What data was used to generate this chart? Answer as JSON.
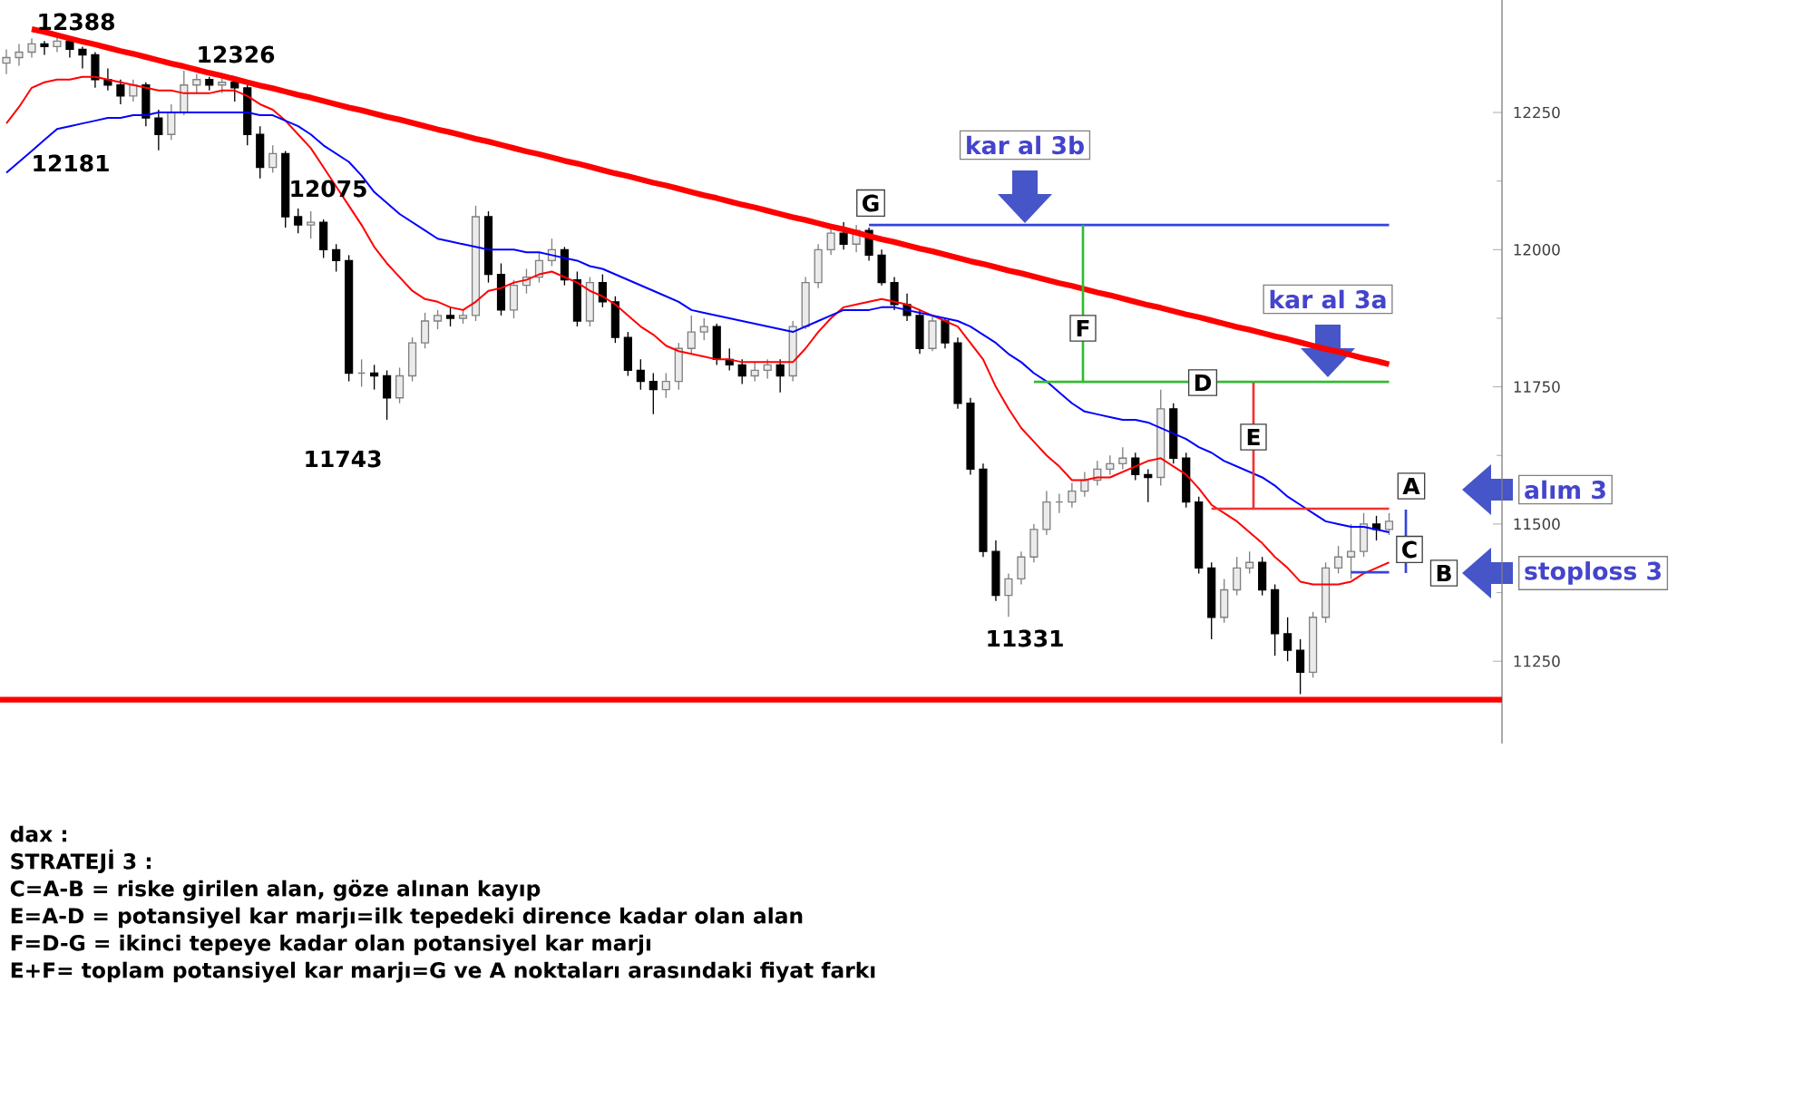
{
  "chart_data": {
    "type": "candlestick",
    "categories": [
      null,
      null,
      null,
      null,
      null,
      null,
      null,
      null,
      null,
      null,
      null,
      null,
      null,
      null,
      null,
      null,
      null,
      null,
      null,
      null,
      null,
      null,
      null,
      null,
      null,
      null,
      null,
      null,
      null,
      null,
      null,
      null,
      null,
      null,
      null,
      null,
      null,
      null,
      null,
      null,
      null,
      null,
      null,
      null,
      null,
      null,
      null,
      null,
      null,
      null,
      null,
      null,
      null,
      null,
      null,
      null,
      null,
      null,
      null,
      null,
      null,
      null,
      null,
      null,
      null,
      null,
      null,
      null,
      null,
      null,
      null,
      null,
      null,
      null,
      null,
      null,
      null,
      null,
      null,
      null,
      null,
      null,
      null,
      null,
      null,
      null,
      null,
      null,
      null,
      null,
      null,
      null,
      null,
      null,
      null,
      null,
      null,
      null,
      null,
      null,
      null,
      null,
      null,
      null,
      null,
      null,
      null,
      null,
      null,
      null
    ],
    "ohlc": [
      [
        12340,
        12365,
        12320,
        12350
      ],
      [
        12350,
        12375,
        12335,
        12360
      ],
      [
        12360,
        12385,
        12350,
        12375
      ],
      [
        12375,
        12380,
        12355,
        12370
      ],
      [
        12370,
        12388,
        12360,
        12380
      ],
      [
        12380,
        12385,
        12350,
        12365
      ],
      [
        12365,
        12370,
        12330,
        12355
      ],
      [
        12355,
        12360,
        12295,
        12310
      ],
      [
        12310,
        12330,
        12290,
        12300
      ],
      [
        12300,
        12310,
        12265,
        12280
      ],
      [
        12280,
        12310,
        12270,
        12300
      ],
      [
        12300,
        12305,
        12225,
        12240
      ],
      [
        12240,
        12255,
        12181,
        12210
      ],
      [
        12210,
        12265,
        12200,
        12250
      ],
      [
        12250,
        12326,
        12245,
        12300
      ],
      [
        12300,
        12320,
        12285,
        12310
      ],
      [
        12310,
        12315,
        12290,
        12300
      ],
      [
        12300,
        12315,
        12285,
        12305
      ],
      [
        12305,
        12315,
        12270,
        12295
      ],
      [
        12295,
        12300,
        12190,
        12210
      ],
      [
        12210,
        12225,
        12130,
        12150
      ],
      [
        12150,
        12190,
        12140,
        12175
      ],
      [
        12175,
        12180,
        12040,
        12060
      ],
      [
        12060,
        12075,
        12030,
        12045
      ],
      [
        12045,
        12070,
        12020,
        12050
      ],
      [
        12050,
        12055,
        11985,
        12000
      ],
      [
        12000,
        12010,
        11960,
        11980
      ],
      [
        11980,
        11990,
        11760,
        11775
      ],
      [
        11775,
        11800,
        11750,
        11775
      ],
      [
        11775,
        11790,
        11745,
        11770
      ],
      [
        11770,
        11780,
        11690,
        11730
      ],
      [
        11730,
        11785,
        11720,
        11770
      ],
      [
        11770,
        11840,
        11760,
        11830
      ],
      [
        11830,
        11885,
        11820,
        11870
      ],
      [
        11870,
        11890,
        11855,
        11880
      ],
      [
        11880,
        11895,
        11860,
        11875
      ],
      [
        11875,
        11890,
        11865,
        11880
      ],
      [
        11880,
        12080,
        11870,
        12060
      ],
      [
        12060,
        12070,
        11940,
        11955
      ],
      [
        11955,
        11975,
        11880,
        11890
      ],
      [
        11890,
        11945,
        11875,
        11935
      ],
      [
        11935,
        11965,
        11920,
        11950
      ],
      [
        11950,
        11995,
        11940,
        11980
      ],
      [
        11980,
        12020,
        11970,
        12000
      ],
      [
        12000,
        12005,
        11935,
        11945
      ],
      [
        11945,
        11960,
        11860,
        11870
      ],
      [
        11870,
        11950,
        11860,
        11940
      ],
      [
        11940,
        11955,
        11895,
        11905
      ],
      [
        11905,
        11915,
        11830,
        11840
      ],
      [
        11840,
        11850,
        11770,
        11780
      ],
      [
        11780,
        11800,
        11745,
        11760
      ],
      [
        11760,
        11775,
        11700,
        11745
      ],
      [
        11745,
        11775,
        11730,
        11760
      ],
      [
        11760,
        11830,
        11745,
        11820
      ],
      [
        11820,
        11880,
        11810,
        11850
      ],
      [
        11850,
        11875,
        11835,
        11860
      ],
      [
        11860,
        11865,
        11790,
        11800
      ],
      [
        11800,
        11820,
        11780,
        11790
      ],
      [
        11790,
        11800,
        11755,
        11770
      ],
      [
        11770,
        11795,
        11760,
        11780
      ],
      [
        11780,
        11800,
        11765,
        11790
      ],
      [
        11790,
        11800,
        11740,
        11770
      ],
      [
        11770,
        11870,
        11760,
        11860
      ],
      [
        11860,
        11950,
        11855,
        11940
      ],
      [
        11940,
        12010,
        11930,
        12000
      ],
      [
        12000,
        12040,
        11990,
        12030
      ],
      [
        12030,
        12050,
        12000,
        12010
      ],
      [
        12010,
        12045,
        11995,
        12035
      ],
      [
        12035,
        12040,
        11980,
        11990
      ],
      [
        11990,
        12000,
        11935,
        11940
      ],
      [
        11940,
        11950,
        11890,
        11900
      ],
      [
        11900,
        11920,
        11870,
        11880
      ],
      [
        11880,
        11890,
        11810,
        11820
      ],
      [
        11820,
        11880,
        11815,
        11870
      ],
      [
        11870,
        11875,
        11820,
        11830
      ],
      [
        11830,
        11840,
        11710,
        11720
      ],
      [
        11720,
        11730,
        11590,
        11600
      ],
      [
        11600,
        11610,
        11440,
        11450
      ],
      [
        11450,
        11470,
        11360,
        11370
      ],
      [
        11370,
        11410,
        11331,
        11400
      ],
      [
        11400,
        11450,
        11390,
        11440
      ],
      [
        11440,
        11500,
        11430,
        11490
      ],
      [
        11490,
        11560,
        11480,
        11540
      ],
      [
        11540,
        11555,
        11520,
        11540
      ],
      [
        11540,
        11575,
        11530,
        11560
      ],
      [
        11560,
        11595,
        11550,
        11580
      ],
      [
        11580,
        11615,
        11570,
        11600
      ],
      [
        11600,
        11625,
        11590,
        11610
      ],
      [
        11610,
        11640,
        11600,
        11620
      ],
      [
        11620,
        11630,
        11580,
        11590
      ],
      [
        11590,
        11600,
        11540,
        11585
      ],
      [
        11585,
        11745,
        11570,
        11710
      ],
      [
        11710,
        11720,
        11610,
        11620
      ],
      [
        11620,
        11630,
        11530,
        11540
      ],
      [
        11540,
        11550,
        11410,
        11420
      ],
      [
        11420,
        11430,
        11290,
        11330
      ],
      [
        11330,
        11400,
        11320,
        11380
      ],
      [
        11380,
        11440,
        11370,
        11420
      ],
      [
        11420,
        11450,
        11410,
        11430
      ],
      [
        11430,
        11440,
        11370,
        11380
      ],
      [
        11380,
        11390,
        11260,
        11300
      ],
      [
        11300,
        11330,
        11250,
        11270
      ],
      [
        11270,
        11290,
        11190,
        11230
      ],
      [
        11230,
        11340,
        11220,
        11330
      ],
      [
        11330,
        11430,
        11320,
        11420
      ],
      [
        11420,
        11460,
        11410,
        11440
      ],
      [
        11440,
        11500,
        11400,
        11450
      ],
      [
        11450,
        11520,
        11440,
        11500
      ],
      [
        11500,
        11515,
        11470,
        11490
      ],
      [
        11490,
        11520,
        11480,
        11505
      ]
    ],
    "series": [
      {
        "type": "line",
        "color": "#ff0000",
        "values": [
          12230,
          12260,
          12295,
          12305,
          12310,
          12310,
          12315,
          12315,
          12310,
          12305,
          12300,
          12295,
          12290,
          12290,
          12285,
          12285,
          12285,
          12290,
          12290,
          12280,
          12265,
          12255,
          12235,
          12210,
          12185,
          12150,
          12115,
          12080,
          12045,
          12005,
          11975,
          11950,
          11925,
          11910,
          11905,
          11895,
          11890,
          11905,
          11925,
          11930,
          11940,
          11945,
          11955,
          11960,
          11950,
          11940,
          11925,
          11915,
          11900,
          11880,
          11860,
          11845,
          11825,
          11815,
          11810,
          11805,
          11800,
          11800,
          11795,
          11795,
          11795,
          11795,
          11795,
          11820,
          11850,
          11875,
          11895,
          11900,
          11905,
          11910,
          11905,
          11900,
          11890,
          11880,
          11870,
          11860,
          11830,
          11800,
          11750,
          11710,
          11675,
          11650,
          11625,
          11605,
          11580,
          11580,
          11585,
          11585,
          11595,
          11605,
          11615,
          11620,
          11605,
          11590,
          11565,
          11535,
          11520,
          11505,
          11485,
          11465,
          11440,
          11420,
          11395,
          11390,
          11390,
          11390,
          11395,
          11410,
          11420,
          11430
        ]
      },
      {
        "type": "line",
        "color": "#0000ff",
        "values": [
          12140,
          12160,
          12180,
          12200,
          12220,
          12225,
          12230,
          12235,
          12240,
          12240,
          12245,
          12245,
          12250,
          12250,
          12250,
          12250,
          12250,
          12250,
          12250,
          12250,
          12245,
          12245,
          12235,
          12225,
          12210,
          12190,
          12175,
          12160,
          12135,
          12105,
          12085,
          12065,
          12050,
          12035,
          12020,
          12015,
          12010,
          12005,
          12000,
          12000,
          12000,
          11995,
          11995,
          11990,
          11985,
          11980,
          11970,
          11965,
          11955,
          11945,
          11935,
          11925,
          11915,
          11905,
          11890,
          11885,
          11880,
          11875,
          11870,
          11865,
          11860,
          11855,
          11850,
          11860,
          11870,
          11880,
          11890,
          11890,
          11890,
          11895,
          11895,
          11890,
          11885,
          11880,
          11875,
          11870,
          11860,
          11845,
          11830,
          11810,
          11795,
          11775,
          11760,
          11740,
          11720,
          11705,
          11700,
          11695,
          11690,
          11690,
          11685,
          11675,
          11665,
          11655,
          11640,
          11630,
          11615,
          11605,
          11595,
          11585,
          11570,
          11550,
          11535,
          11520,
          11505,
          11500,
          11495,
          11495,
          11490,
          11485
        ]
      },
      {
        "type": "line",
        "color": "#ff0000",
        "values": [
          null,
          null,
          12402,
          12397,
          12391,
          12385,
          12379,
          12374,
          12368,
          12362,
          12357,
          12351,
          12345,
          12339,
          12334,
          12328,
          12322,
          12317,
          12311,
          12305,
          12299,
          12294,
          12288,
          12282,
          12277,
          12271,
          12265,
          12259,
          12254,
          12248,
          12242,
          12237,
          12231,
          12225,
          12219,
          12214,
          12208,
          12202,
          12197,
          12191,
          12185,
          12179,
          12174,
          12168,
          12162,
          12157,
          12151,
          12145,
          12139,
          12134,
          12128,
          12122,
          12117,
          12111,
          12105,
          12099,
          12094,
          12088,
          12082,
          12077,
          12071,
          12065,
          12059,
          12054,
          12048,
          12042,
          12037,
          12031,
          12025,
          12019,
          12014,
          12008,
          12002,
          11997,
          11991,
          11985,
          11979,
          11974,
          11968,
          11962,
          11957,
          11951,
          11945,
          11939,
          11934,
          11928,
          11922,
          11917,
          11911,
          11905,
          11899,
          11894,
          11888,
          11882,
          11877,
          11871,
          11865,
          11859,
          11854,
          11848,
          11842,
          11837,
          11831,
          11825,
          11819,
          11814,
          11808,
          11802,
          11797,
          11791
        ]
      },
      {
        "type": "line",
        "color": "#3344dd",
        "values": [
          null,
          null,
          null,
          null,
          null,
          null,
          null,
          null,
          null,
          null,
          null,
          null,
          null,
          null,
          null,
          null,
          null,
          null,
          null,
          null,
          null,
          null,
          null,
          null,
          null,
          null,
          null,
          null,
          null,
          null,
          null,
          null,
          null,
          null,
          null,
          null,
          null,
          null,
          null,
          null,
          null,
          null,
          null,
          null,
          null,
          null,
          null,
          null,
          null,
          null,
          null,
          null,
          null,
          null,
          null,
          null,
          null,
          null,
          null,
          null,
          null,
          null,
          null,
          null,
          null,
          null,
          null,
          null,
          12045,
          12045,
          12045,
          12045,
          12045,
          12045,
          12045,
          12045,
          12045,
          12045,
          12045,
          12045,
          12045,
          12045,
          12045,
          12045,
          12045,
          12045,
          12045,
          12045,
          12045,
          12045,
          12045,
          12045,
          12045,
          12045,
          12045,
          12045,
          12045,
          12045,
          12045,
          12045,
          12045,
          12045,
          12045,
          12045,
          12045,
          12045,
          12045,
          12045,
          12045,
          12045
        ]
      },
      {
        "type": "line",
        "color": "#33bb33",
        "values": [
          null,
          null,
          null,
          null,
          null,
          null,
          null,
          null,
          null,
          null,
          null,
          null,
          null,
          null,
          null,
          null,
          null,
          null,
          null,
          null,
          null,
          null,
          null,
          null,
          null,
          null,
          null,
          null,
          null,
          null,
          null,
          null,
          null,
          null,
          null,
          null,
          null,
          null,
          null,
          null,
          null,
          null,
          null,
          null,
          null,
          null,
          null,
          null,
          null,
          null,
          null,
          null,
          null,
          null,
          null,
          null,
          null,
          null,
          null,
          null,
          null,
          null,
          null,
          null,
          null,
          null,
          null,
          null,
          null,
          null,
          null,
          null,
          null,
          null,
          null,
          null,
          null,
          null,
          null,
          null,
          null,
          11759,
          11759,
          11759,
          11759,
          11759,
          11759,
          11759,
          11759,
          11759,
          11759,
          11759,
          11759,
          11759,
          11759,
          11759,
          11759,
          11759,
          11759,
          11759,
          11759,
          11759,
          11759,
          11759,
          11759,
          11759,
          11759,
          11759,
          11759,
          11759
        ]
      },
      {
        "type": "line",
        "color": "#ee3333",
        "values": [
          null,
          null,
          null,
          null,
          null,
          null,
          null,
          null,
          null,
          null,
          null,
          null,
          null,
          null,
          null,
          null,
          null,
          null,
          null,
          null,
          null,
          null,
          null,
          null,
          null,
          null,
          null,
          null,
          null,
          null,
          null,
          null,
          null,
          null,
          null,
          null,
          null,
          null,
          null,
          null,
          null,
          null,
          null,
          null,
          null,
          null,
          null,
          null,
          null,
          null,
          null,
          null,
          null,
          null,
          null,
          null,
          null,
          null,
          null,
          null,
          null,
          null,
          null,
          null,
          null,
          null,
          null,
          null,
          null,
          null,
          null,
          null,
          null,
          null,
          null,
          null,
          null,
          null,
          null,
          null,
          null,
          null,
          null,
          null,
          null,
          null,
          null,
          null,
          null,
          null,
          null,
          null,
          null,
          null,
          null,
          11528,
          11528,
          11528,
          11528,
          11528,
          11528,
          11528,
          11528,
          11528,
          11528,
          11528,
          11528,
          11528,
          11528,
          11528
        ]
      },
      {
        "type": "line",
        "color": "#3344dd",
        "values": [
          null,
          null,
          null,
          null,
          null,
          null,
          null,
          null,
          null,
          null,
          null,
          null,
          null,
          null,
          null,
          null,
          null,
          null,
          null,
          null,
          null,
          null,
          null,
          null,
          null,
          null,
          null,
          null,
          null,
          null,
          null,
          null,
          null,
          null,
          null,
          null,
          null,
          null,
          null,
          null,
          null,
          null,
          null,
          null,
          null,
          null,
          null,
          null,
          null,
          null,
          null,
          null,
          null,
          null,
          null,
          null,
          null,
          null,
          null,
          null,
          null,
          null,
          null,
          null,
          null,
          null,
          null,
          null,
          null,
          null,
          null,
          null,
          null,
          null,
          null,
          null,
          null,
          null,
          null,
          null,
          null,
          null,
          null,
          null,
          null,
          null,
          null,
          null,
          null,
          null,
          null,
          null,
          null,
          null,
          null,
          null,
          null,
          null,
          null,
          null,
          null,
          null,
          null,
          null,
          null,
          null,
          11412,
          11412,
          11412,
          11412
        ]
      }
    ],
    "ref_lines": [
      {
        "axis": "y",
        "value": 11180,
        "color": "#ff0000"
      }
    ],
    "ylim": [
      11100,
      12455
    ],
    "yticks": [
      11250,
      11500,
      11750,
      12000,
      12250
    ],
    "tick_labels": "y",
    "annotations": [
      "12388",
      "12326",
      "12181",
      "12075",
      "11743",
      "11331",
      "G",
      "F",
      "D",
      "E",
      "A",
      "C",
      "B",
      "kar al 3b",
      "kar al 3a",
      "alım 3",
      "stoploss 3",
      "dax :",
      "STRATEJİ 3 :",
      "C=A-B = riske girilen alan, göze alınan kayıp",
      "E=A-D = potansiyel kar marjı=ilk tepedeki dirence kadar olan alan",
      "F=D-G = ikinci tepeye kadar olan potansiyel kar marjı",
      "E+F= toplam potansiyel kar marjı=G ve A noktaları arasındaki fiyat farkı"
    ]
  }
}
